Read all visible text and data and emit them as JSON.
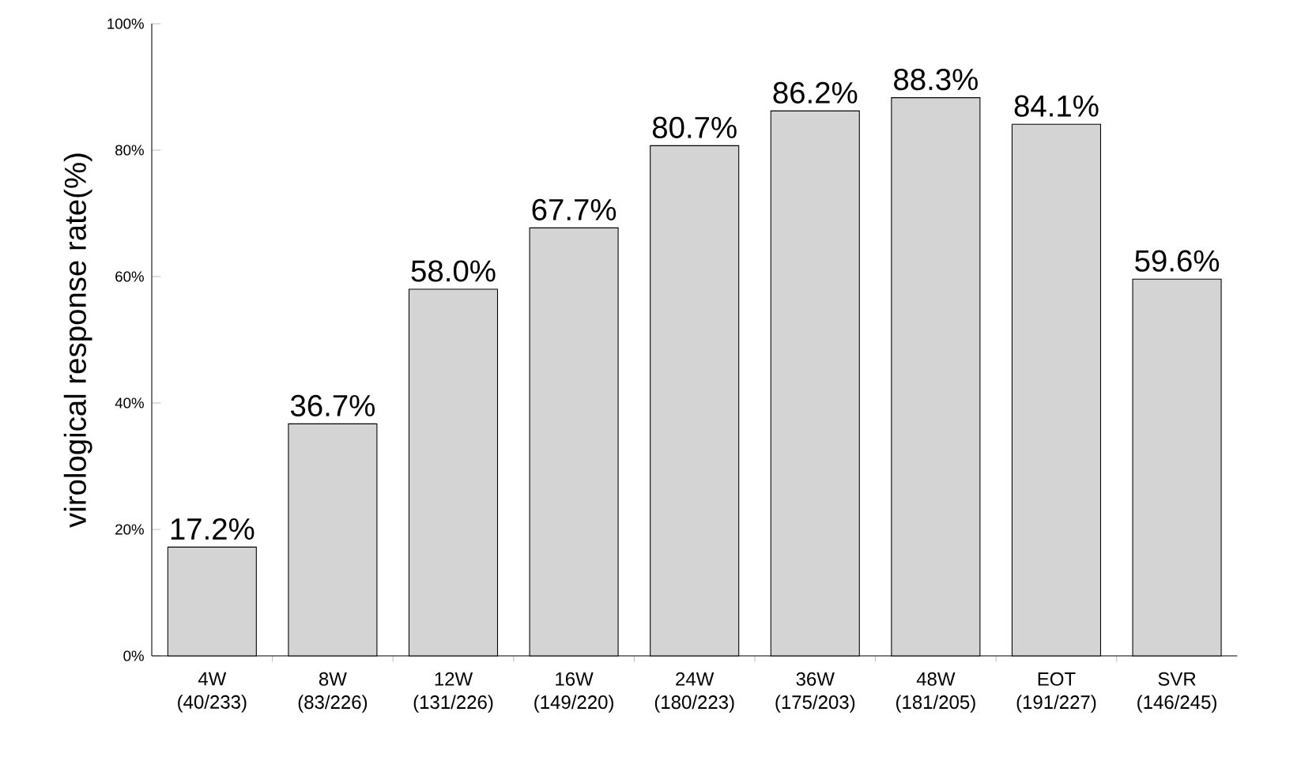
{
  "chart_data": {
    "type": "bar",
    "ylabel": "virological response rate(%)",
    "categories": [
      "4W (40/233)",
      "8W (83/226)",
      "12W (131/226)",
      "16W (149/220)",
      "24W (180/223)",
      "36W (175/203)",
      "48W (181/205)",
      "EOT (191/227)",
      "SVR (146/245)"
    ],
    "values": [
      17.2,
      36.7,
      58.0,
      67.7,
      80.7,
      86.2,
      88.3,
      84.1,
      59.6
    ],
    "value_labels": [
      "17.2%",
      "36.7%",
      "58.0%",
      "67.7%",
      "80.7%",
      "86.2%",
      "88.3%",
      "84.1%",
      "59.6%"
    ],
    "color": "#d4d4d4",
    "ylim": [
      0,
      100
    ],
    "yticks": [
      {
        "value": 0,
        "label": "0%"
      },
      {
        "value": 20,
        "label": "20%"
      },
      {
        "value": 40,
        "label": "40%"
      },
      {
        "value": 60,
        "label": "60%"
      },
      {
        "value": 80,
        "label": "80%"
      },
      {
        "value": 100,
        "label": "100%"
      }
    ],
    "grid": false
  }
}
